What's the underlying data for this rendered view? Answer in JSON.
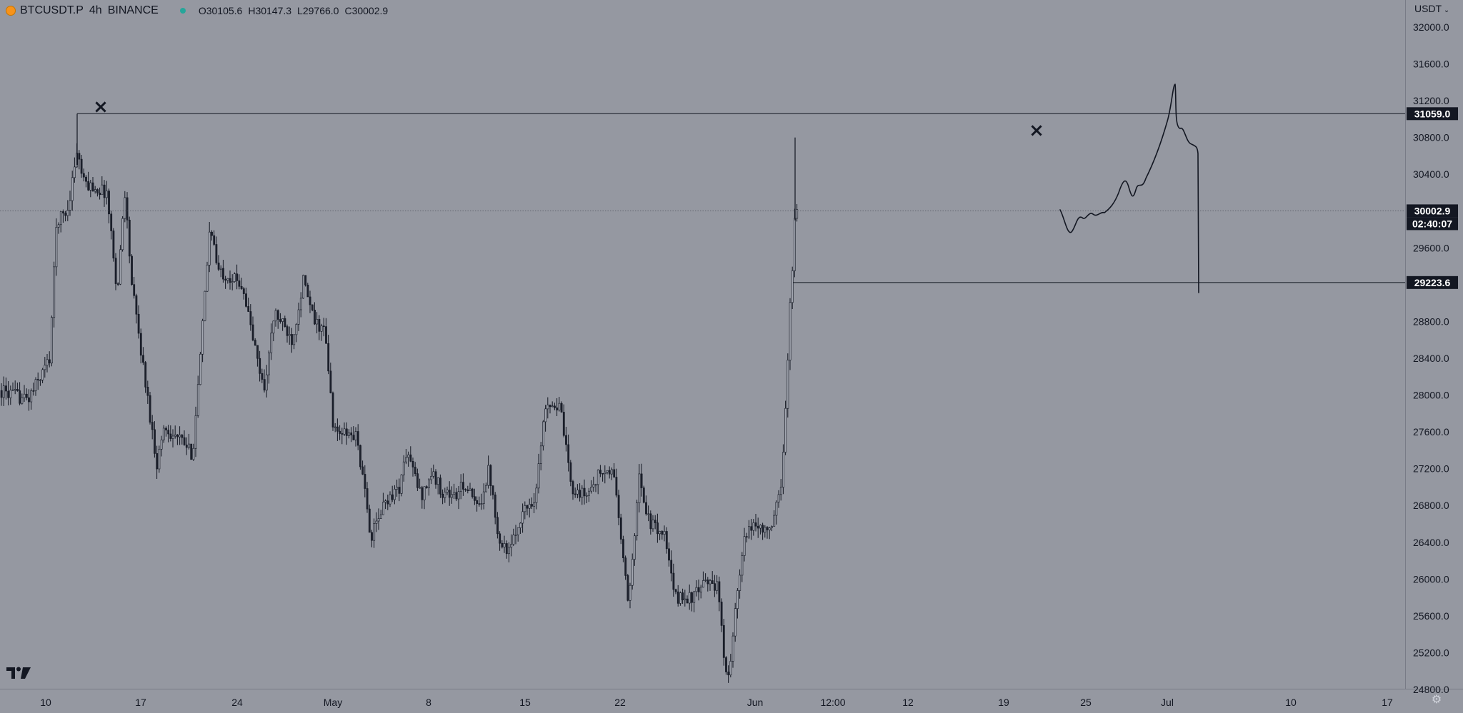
{
  "header": {
    "symbol": "BTCUSDT.P",
    "interval": "4h",
    "exchange": "BINANCE",
    "status_color": "#26a69a",
    "open": "O30105.6",
    "high": "H30147.3",
    "low": "L29766.0",
    "close": "C30002.9",
    "symbol_icon": "bitcoin-icon"
  },
  "price_axis": {
    "currency_label": "USDT",
    "labels": [
      "32000.0",
      "31600.0",
      "31200.0",
      "30800.0",
      "30400.0",
      "29600.0",
      "29200.0",
      "28800.0",
      "28400.0",
      "28000.0",
      "27600.0",
      "27200.0",
      "26800.0",
      "26400.0",
      "26000.0",
      "25600.0",
      "25200.0",
      "24800.0"
    ],
    "values": [
      32000,
      31600,
      31200,
      30800,
      30400,
      29600,
      29200,
      28800,
      28400,
      28000,
      27600,
      27200,
      26800,
      26400,
      26000,
      25600,
      25200,
      24800
    ],
    "last_price": "30002.9",
    "last_value": 30002.9,
    "countdown": "02:40:07",
    "level_high": "31059.0",
    "level_high_value": 31059,
    "level_low": "29223.6",
    "level_low_value": 29223.6
  },
  "time_axis": {
    "labels": [
      "10",
      "17",
      "24",
      "May",
      "8",
      "15",
      "22",
      "Jun",
      "12:00",
      "12",
      "19",
      "25",
      "Jul",
      "10",
      "17"
    ]
  },
  "chart_data": {
    "type": "candlestick",
    "ylim": [
      24600,
      32200
    ],
    "key_points": [
      {
        "date": "Apr 10",
        "price": 28000
      },
      {
        "date": "Apr 14",
        "price": 31059
      },
      {
        "date": "Apr 21",
        "price": 27300
      },
      {
        "date": "Apr 26",
        "price": 29900
      },
      {
        "date": "May 6",
        "price": 29700
      },
      {
        "date": "May 12",
        "price": 26300
      },
      {
        "date": "May 28",
        "price": 28300
      },
      {
        "date": "Jun 10",
        "price": 25500
      },
      {
        "date": "Jun 15",
        "price": 24900
      },
      {
        "date": "Jun 21",
        "price": 30800
      },
      {
        "date": "Jun 22",
        "price": 30002.9
      }
    ],
    "markers": [
      {
        "symbol": "×",
        "date": "Apr 14",
        "price": 31059
      },
      {
        "symbol": "×",
        "date": "Jun 21",
        "price": 30800
      }
    ],
    "horizontal_lines": [
      31059.0,
      29223.6,
      30002.9
    ],
    "drawn_projection": "hand-drawn path rising to ~31450 then dropping to ~29100"
  },
  "icons": {
    "logo": "tradingview-logo-icon",
    "settings": "gear-icon"
  }
}
